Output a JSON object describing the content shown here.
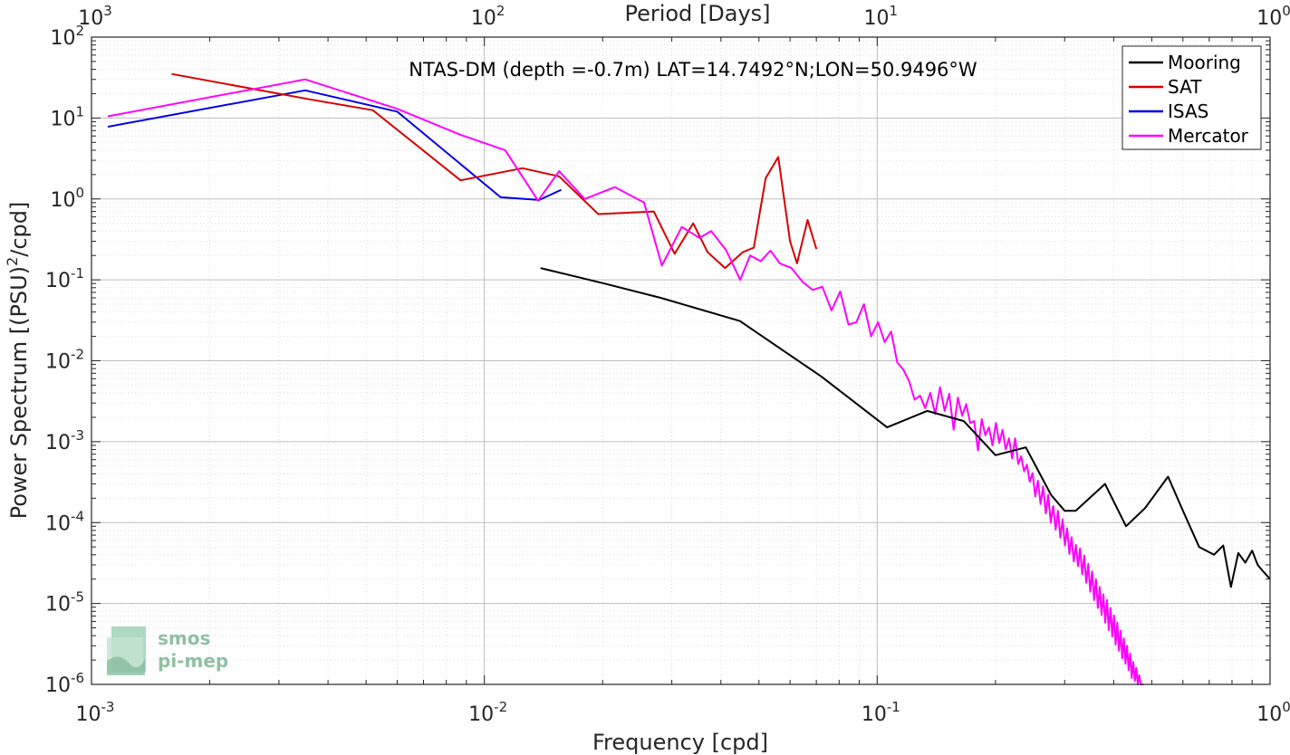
{
  "chart_data": {
    "type": "line",
    "title": "NTAS-DM (depth =-0.7m) LAT=14.7492°N;LON=50.9496°W",
    "xlabel": "Frequency [cpd]",
    "ylabel": "Power Spectrum [(PSU)^2/cpd]",
    "ylabel_main": "Power Spectrum [(PSU)",
    "ylabel_sup": "2",
    "ylabel_tail": "/cpd]",
    "x2label": "Period [Days]",
    "xscale": "log",
    "yscale": "log",
    "xlim": [
      0.001,
      1
    ],
    "ylim": [
      1e-06,
      100
    ],
    "grid": true,
    "legend_position": "top-right",
    "x_ticks": [
      {
        "base": "10",
        "exp": "-3"
      },
      {
        "base": "10",
        "exp": "-2"
      },
      {
        "base": "10",
        "exp": "-1"
      },
      {
        "base": "10",
        "exp": "0"
      }
    ],
    "x2_ticks": [
      {
        "base": "10",
        "exp": "3"
      },
      {
        "base": "10",
        "exp": "2"
      },
      {
        "base": "10",
        "exp": "1"
      },
      {
        "base": "10",
        "exp": "0"
      }
    ],
    "y_ticks": [
      {
        "base": "10",
        "exp": "-6"
      },
      {
        "base": "10",
        "exp": "-5"
      },
      {
        "base": "10",
        "exp": "-4"
      },
      {
        "base": "10",
        "exp": "-3"
      },
      {
        "base": "10",
        "exp": "-2"
      },
      {
        "base": "10",
        "exp": "-1"
      },
      {
        "base": "10",
        "exp": "0"
      },
      {
        "base": "10",
        "exp": "1"
      },
      {
        "base": "10",
        "exp": "2"
      }
    ],
    "series": [
      {
        "name": "Mooring",
        "color": "#000000",
        "x": [
          0.0139,
          0.0202,
          0.0281,
          0.0447,
          0.072,
          0.106,
          0.134,
          0.166,
          0.2,
          0.239,
          0.277,
          0.3,
          0.32,
          0.38,
          0.43,
          0.48,
          0.55,
          0.6,
          0.66,
          0.72,
          0.76,
          0.795,
          0.83,
          0.865,
          0.9,
          0.93,
          0.96,
          1.0
        ],
        "y": [
          0.14,
          0.09,
          0.06,
          0.031,
          0.0064,
          0.0015,
          0.0024,
          0.0018,
          0.00068,
          0.00085,
          0.00022,
          0.00014,
          0.00014,
          0.0003,
          9e-05,
          0.00015,
          0.00037,
          0.00014,
          5e-05,
          4e-05,
          5.2e-05,
          1.6e-05,
          4.2e-05,
          3.2e-05,
          4.5e-05,
          3e-05,
          2.5e-05,
          2e-05
        ]
      },
      {
        "name": "SAT",
        "color": "#d60000",
        "x": [
          0.0016,
          0.0036,
          0.0052,
          0.0087,
          0.0125,
          0.0155,
          0.0195,
          0.027,
          0.0305,
          0.034,
          0.037,
          0.041,
          0.0455,
          0.0485,
          0.052,
          0.056,
          0.06,
          0.0625,
          0.0665,
          0.07
        ],
        "y": [
          35,
          17,
          12.5,
          1.7,
          2.4,
          1.9,
          0.65,
          0.7,
          0.21,
          0.5,
          0.22,
          0.14,
          0.22,
          0.25,
          1.8,
          3.3,
          0.3,
          0.16,
          0.55,
          0.24
        ]
      },
      {
        "name": "ISAS",
        "color": "#0000e6",
        "x": [
          0.0011,
          0.0035,
          0.006,
          0.011,
          0.0138,
          0.0157
        ],
        "y": [
          7.8,
          22,
          12,
          1.05,
          0.97,
          1.3
        ]
      },
      {
        "name": "Mercator",
        "color": "#ff00ff",
        "x": [
          0.0011,
          0.0035,
          0.006,
          0.0087,
          0.0113,
          0.0137,
          0.0155,
          0.018,
          0.0215,
          0.0255,
          0.0283,
          0.0318,
          0.0353,
          0.0378,
          0.0413,
          0.0448,
          0.0475,
          0.0505,
          0.0535,
          0.0565,
          0.0605,
          0.0645,
          0.0685,
          0.0725,
          0.0765,
          0.0805,
          0.0845,
          0.0885,
          0.0925,
          0.0965,
          0.1005,
          0.1045,
          0.1085,
          0.1125,
          0.1165,
          0.1205,
          0.1245,
          0.1285,
          0.1325,
          0.1365,
          0.1405,
          0.1445,
          0.1485,
          0.1525,
          0.1565,
          0.1605,
          0.1645,
          0.1685,
          0.1725,
          0.1765,
          0.1805,
          0.1845,
          0.1885,
          0.1925,
          0.1965,
          0.2005,
          0.2045,
          0.2085,
          0.2125,
          0.2165,
          0.2205,
          0.2245,
          0.2285,
          0.2325,
          0.2365,
          0.2405,
          0.2445,
          0.2485,
          0.2525,
          0.2565,
          0.2605,
          0.2645,
          0.2685,
          0.2725,
          0.2765,
          0.2805,
          0.2845,
          0.2885,
          0.2925,
          0.2965,
          0.3005,
          0.3045,
          0.3085,
          0.3125,
          0.3165,
          0.3205,
          0.3245,
          0.3285,
          0.3325,
          0.3365,
          0.3405,
          0.3445,
          0.3485,
          0.3525,
          0.3565,
          0.3605,
          0.3645,
          0.3685,
          0.3725,
          0.3765,
          0.3805,
          0.3845,
          0.3885,
          0.3925,
          0.3965,
          0.4005,
          0.4045,
          0.4085,
          0.4125,
          0.4165,
          0.4205,
          0.4245,
          0.4285,
          0.4325,
          0.4365,
          0.4405,
          0.4445,
          0.4485,
          0.4525,
          0.4565,
          0.4605,
          0.4645,
          0.4685,
          0.4725,
          0.4765
        ],
        "y": [
          10.5,
          30,
          13,
          6.2,
          4,
          0.95,
          2.2,
          1,
          1.4,
          0.9,
          0.15,
          0.45,
          0.33,
          0.4,
          0.23,
          0.1,
          0.2,
          0.17,
          0.23,
          0.16,
          0.14,
          0.095,
          0.075,
          0.082,
          0.042,
          0.072,
          0.028,
          0.03,
          0.05,
          0.02,
          0.03,
          0.017,
          0.023,
          0.0095,
          0.0078,
          0.0056,
          0.0033,
          0.0037,
          0.0026,
          0.004,
          0.0022,
          0.0047,
          0.0024,
          0.0039,
          0.0014,
          0.0035,
          0.0021,
          0.0029,
          0.0017,
          0.0018,
          0.00078,
          0.0019,
          0.0012,
          0.0015,
          0.0009,
          0.0017,
          0.00096,
          0.0014,
          0.0008,
          0.0011,
          0.00062,
          0.0011,
          0.00053,
          0.00066,
          0.00043,
          0.00052,
          0.00032,
          0.00041,
          0.00021,
          0.00033,
          0.00017,
          0.00028,
          0.00013,
          0.00022,
          0.0001,
          0.00016,
          8.2e-05,
          0.00014,
          6.5e-05,
          0.00011,
          5.2e-05,
          8.5e-05,
          4.1e-05,
          6.6e-05,
          3.3e-05,
          5.3e-05,
          2.9e-05,
          4.8e-05,
          2.3e-05,
          3.9e-05,
          1.8e-05,
          3.1e-05,
          1.4e-05,
          2.5e-05,
          1.1e-05,
          2e-05,
          8.8e-06,
          1.6e-05,
          7.2e-06,
          1.3e-05,
          5.8e-06,
          1.1e-05,
          4.7e-06,
          8.8e-06,
          3.9e-06,
          7.1e-06,
          3.1e-06,
          5.8e-06,
          2.6e-06,
          4.6e-06,
          2.1e-06,
          3.7e-06,
          1.8e-06,
          3e-06,
          1.5e-06,
          2.4e-06,
          1.2e-06,
          1.9e-06,
          1.1e-06,
          1.6e-06,
          1e-06,
          1.3e-06,
          1e-06,
          1e-06,
          1e-06
        ]
      }
    ]
  },
  "logo": {
    "line1": "smos",
    "line2": "pi-mep"
  }
}
